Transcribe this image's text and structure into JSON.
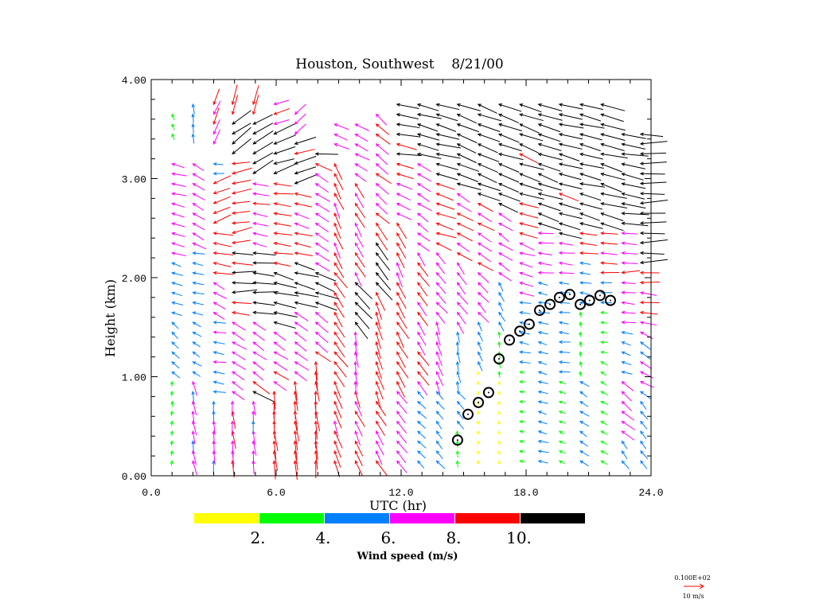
{
  "chart_data": {
    "type": "vector",
    "title": "Houston, Southwest    8/21/00",
    "xlabel": "UTC (hr)",
    "ylabel": "Height (km)",
    "xlim": [
      0,
      24
    ],
    "ylim": [
      0,
      4
    ],
    "x_ticks": [
      "0.0",
      "6.0",
      "12.0",
      "18.0",
      "24.0"
    ],
    "x_tick_values": [
      0,
      6,
      12,
      18,
      24
    ],
    "y_ticks": [
      "0.00",
      "1.00",
      "2.00",
      "3.00",
      "4.00"
    ],
    "y_tick_values": [
      0,
      1,
      2,
      3,
      4
    ],
    "legend": {
      "title": "Wind speed (m/s)",
      "colors": [
        "#ffff00",
        "#00ff00",
        "#0080ff",
        "#ff00ff",
        "#ff0000",
        "#000000"
      ],
      "labels": [
        "2.",
        "4.",
        "6.",
        "8.",
        "10."
      ],
      "thresholds": [
        2,
        4,
        6,
        8,
        10
      ]
    },
    "reference_vector": {
      "label_top": "0.100E+02",
      "label_bottom": "10 m/s",
      "speed": 10,
      "color": "#ff0000"
    },
    "vector_height_step_km": 0.1,
    "vector_profiles_note": "layers: [bottom_km, top_km, speed_m_s, direction_deg_ccw_from_east]",
    "vector_profiles": [
      {
        "t": 1.0,
        "layers": [
          [
            0.15,
            1.0,
            2.5,
            90
          ],
          [
            1.0,
            1.6,
            4.5,
            135
          ],
          [
            1.6,
            2.2,
            5,
            160
          ],
          [
            2.2,
            3.15,
            6.5,
            165
          ],
          [
            3.4,
            3.65,
            3,
            110
          ]
        ]
      },
      {
        "t": 2.0,
        "layers": [
          [
            0.15,
            1.0,
            6.5,
            100
          ],
          [
            1.0,
            1.6,
            4.5,
            150
          ],
          [
            1.6,
            2.3,
            5.5,
            170
          ],
          [
            2.3,
            3.2,
            6.5,
            150
          ],
          [
            3.45,
            3.8,
            4.5,
            95
          ]
        ]
      },
      {
        "t": 3.0,
        "layers": [
          [
            0.15,
            0.8,
            6.5,
            95
          ],
          [
            0.8,
            1.6,
            5.5,
            170
          ],
          [
            1.6,
            2.0,
            6.5,
            150
          ],
          [
            2.0,
            2.5,
            9,
            170
          ],
          [
            2.5,
            3.0,
            8.5,
            200
          ],
          [
            3.0,
            3.2,
            5,
            180
          ],
          [
            3.3,
            3.75,
            8,
            250
          ]
        ]
      },
      {
        "t": 3.9,
        "layers": [
          [
            0.15,
            0.8,
            8,
            95
          ],
          [
            0.8,
            1.6,
            7,
            145
          ],
          [
            1.6,
            1.8,
            9,
            175
          ],
          [
            1.8,
            2.3,
            11,
            180
          ],
          [
            2.3,
            3.2,
            9,
            190
          ],
          [
            3.2,
            3.6,
            11,
            215
          ],
          [
            3.6,
            3.8,
            9,
            250
          ]
        ]
      },
      {
        "t": 4.9,
        "layers": [
          [
            0.15,
            0.8,
            6.5,
            95
          ],
          [
            0.8,
            1.0,
            11,
            150
          ],
          [
            1.0,
            1.6,
            7,
            145
          ],
          [
            1.6,
            2.3,
            11,
            175
          ],
          [
            2.3,
            3.0,
            7.5,
            170
          ],
          [
            3.0,
            3.6,
            11,
            210
          ],
          [
            3.6,
            3.8,
            9,
            250
          ]
        ]
      },
      {
        "t": 5.9,
        "layers": [
          [
            0.15,
            0.9,
            9,
            95
          ],
          [
            0.9,
            1.2,
            8,
            150
          ],
          [
            1.2,
            1.5,
            7,
            145
          ],
          [
            1.5,
            2.1,
            11,
            165
          ],
          [
            2.1,
            3.0,
            9,
            175
          ],
          [
            3.0,
            3.5,
            11,
            200
          ],
          [
            3.5,
            3.8,
            8,
            200
          ]
        ]
      },
      {
        "t": 6.9,
        "layers": [
          [
            0.15,
            1.0,
            9,
            95
          ],
          [
            1.0,
            1.7,
            7.5,
            145
          ],
          [
            1.7,
            2.2,
            11,
            165
          ],
          [
            2.2,
            2.9,
            8,
            165
          ],
          [
            2.9,
            3.4,
            11,
            200
          ],
          [
            3.4,
            3.65,
            7,
            220
          ]
        ]
      },
      {
        "t": 7.9,
        "layers": [
          [
            0.15,
            1.2,
            9,
            95
          ],
          [
            1.2,
            1.7,
            8.5,
            145
          ],
          [
            1.7,
            2.1,
            11,
            160
          ],
          [
            2.1,
            3.2,
            8,
            150
          ],
          [
            3.2,
            3.3,
            11,
            180
          ]
        ]
      },
      {
        "t": 8.8,
        "layers": [
          [
            0.15,
            1.0,
            8.5,
            110
          ],
          [
            1.0,
            2.2,
            9,
            125
          ],
          [
            2.2,
            3.2,
            8.5,
            115
          ],
          [
            3.3,
            3.6,
            7,
            155
          ]
        ]
      },
      {
        "t": 9.8,
        "layers": [
          [
            0.15,
            0.8,
            8,
            115
          ],
          [
            0.8,
            1.5,
            7.5,
            100
          ],
          [
            1.5,
            2.0,
            10.5,
            130
          ],
          [
            2.0,
            3.0,
            8,
            120
          ],
          [
            3.0,
            3.6,
            7,
            150
          ]
        ]
      },
      {
        "t": 10.8,
        "layers": [
          [
            0.15,
            0.8,
            8,
            120
          ],
          [
            0.8,
            1.9,
            9,
            110
          ],
          [
            1.9,
            2.6,
            11,
            130
          ],
          [
            2.6,
            3.7,
            8,
            140
          ]
        ]
      },
      {
        "t": 11.8,
        "layers": [
          [
            0.15,
            0.9,
            7,
            125
          ],
          [
            0.9,
            2.0,
            9,
            120
          ],
          [
            2.0,
            2.6,
            8,
            115
          ],
          [
            2.6,
            3.2,
            8,
            160
          ],
          [
            3.2,
            3.8,
            11,
            170
          ]
        ]
      },
      {
        "t": 12.8,
        "layers": [
          [
            0.15,
            0.9,
            5,
            135
          ],
          [
            0.9,
            2.3,
            8,
            125
          ],
          [
            2.3,
            3.2,
            7,
            145
          ],
          [
            3.2,
            3.8,
            11,
            165
          ]
        ]
      },
      {
        "t": 13.7,
        "layers": [
          [
            0.15,
            0.9,
            5,
            130
          ],
          [
            0.9,
            1.6,
            7,
            110
          ],
          [
            1.6,
            2.3,
            7,
            130
          ],
          [
            2.3,
            3.0,
            9,
            160
          ],
          [
            3.0,
            3.8,
            11,
            165
          ]
        ]
      },
      {
        "t": 14.7,
        "layers": [
          [
            0.15,
            0.5,
            3,
            90
          ],
          [
            0.5,
            0.9,
            5,
            130
          ],
          [
            0.9,
            1.5,
            5,
            100
          ],
          [
            1.5,
            2.2,
            7,
            125
          ],
          [
            2.2,
            2.9,
            8,
            150
          ],
          [
            2.9,
            3.8,
            11,
            160
          ]
        ]
      },
      {
        "t": 15.7,
        "layers": [
          [
            0.15,
            1.1,
            1.5,
            90
          ],
          [
            1.1,
            1.6,
            4.5,
            110
          ],
          [
            1.6,
            2.1,
            6.5,
            130
          ],
          [
            2.1,
            2.8,
            8,
            150
          ],
          [
            2.8,
            3.8,
            11,
            160
          ]
        ]
      },
      {
        "t": 16.7,
        "layers": [
          [
            0.15,
            1.0,
            1.5,
            90
          ],
          [
            1.0,
            1.5,
            3,
            100
          ],
          [
            1.5,
            2.0,
            5,
            120
          ],
          [
            2.0,
            2.7,
            7,
            145
          ],
          [
            2.7,
            3.8,
            11,
            160
          ]
        ]
      },
      {
        "t": 17.7,
        "layers": [
          [
            0.15,
            1.1,
            2.5,
            170
          ],
          [
            1.1,
            1.8,
            5,
            170
          ],
          [
            1.8,
            2.3,
            7,
            165
          ],
          [
            2.3,
            2.8,
            8.5,
            160
          ],
          [
            2.8,
            3.8,
            11,
            160
          ]
        ]
      },
      {
        "t": 18.6,
        "layers": [
          [
            0.15,
            1.5,
            4.5,
            165
          ],
          [
            1.5,
            2.0,
            5,
            170
          ],
          [
            2.0,
            2.5,
            7,
            175
          ],
          [
            2.5,
            3.8,
            11,
            160
          ]
        ]
      },
      {
        "t": 19.6,
        "layers": [
          [
            0.15,
            1.0,
            3,
            155
          ],
          [
            1.0,
            2.0,
            5,
            175
          ],
          [
            2.0,
            2.4,
            7,
            175
          ],
          [
            2.4,
            3.8,
            11,
            165
          ]
        ]
      },
      {
        "t": 20.6,
        "layers": [
          [
            0.15,
            1.0,
            4.5,
            145
          ],
          [
            1.0,
            1.7,
            2.5,
            100
          ],
          [
            1.7,
            2.2,
            5,
            170
          ],
          [
            2.2,
            2.5,
            8.5,
            175
          ],
          [
            2.5,
            3.8,
            11,
            165
          ]
        ]
      },
      {
        "t": 21.6,
        "layers": [
          [
            0.15,
            1.2,
            3.5,
            150
          ],
          [
            1.2,
            1.7,
            3,
            170
          ],
          [
            1.7,
            2.0,
            5,
            175
          ],
          [
            2.0,
            2.5,
            8,
            175
          ],
          [
            2.5,
            3.8,
            12,
            165
          ]
        ]
      },
      {
        "t": 22.6,
        "layers": [
          [
            0.15,
            0.4,
            5,
            130
          ],
          [
            0.4,
            1.0,
            7,
            140
          ],
          [
            1.0,
            1.5,
            5,
            165
          ],
          [
            1.5,
            2.0,
            6.5,
            175
          ],
          [
            2.0,
            2.5,
            8,
            180
          ],
          [
            2.5,
            3.5,
            12,
            170
          ]
        ]
      },
      {
        "t": 23.5,
        "layers": [
          [
            0.15,
            0.8,
            5,
            130
          ],
          [
            0.8,
            1.5,
            6.5,
            150
          ],
          [
            1.5,
            2.1,
            8.5,
            175
          ],
          [
            2.1,
            3.5,
            12,
            180
          ]
        ]
      }
    ],
    "boundary_layer_points": [
      [
        14.71,
        0.36
      ],
      [
        15.21,
        0.62
      ],
      [
        15.71,
        0.74
      ],
      [
        16.2,
        0.84
      ],
      [
        16.7,
        1.18
      ],
      [
        17.2,
        1.37
      ],
      [
        17.7,
        1.46
      ],
      [
        18.15,
        1.53
      ],
      [
        18.65,
        1.67
      ],
      [
        19.15,
        1.73
      ],
      [
        19.6,
        1.8
      ],
      [
        20.1,
        1.83
      ],
      [
        20.6,
        1.73
      ],
      [
        21.05,
        1.77
      ],
      [
        21.55,
        1.82
      ],
      [
        22.05,
        1.77
      ]
    ]
  }
}
